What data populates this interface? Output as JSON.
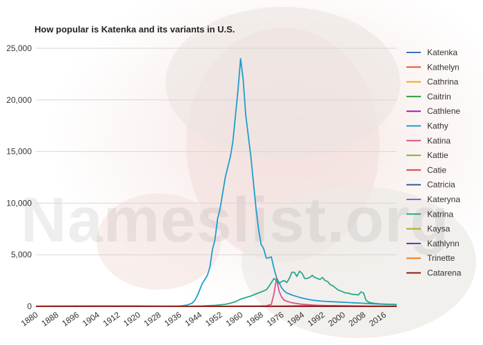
{
  "watermark": "Nameslist.org",
  "chart_data": {
    "type": "line",
    "title": "How popular is Katenka and its variants in U.S.",
    "xlim": [
      1880,
      2021
    ],
    "ylim": [
      0,
      25000
    ],
    "yticks": [
      0,
      5000,
      10000,
      15000,
      20000,
      25000
    ],
    "ytick_labels": [
      "0",
      "5,000",
      "10,000",
      "15,000",
      "20,000",
      "25,000"
    ],
    "xticks": [
      1880,
      1888,
      1896,
      1904,
      1912,
      1920,
      1928,
      1936,
      1944,
      1952,
      1960,
      1968,
      1976,
      1984,
      1992,
      2000,
      2008,
      2016
    ],
    "grid": "horizontal",
    "legend_position": "right",
    "series": [
      {
        "name": "Katenka",
        "color": "#3a6fc4",
        "points": [
          [
            1880,
            0
          ],
          [
            2021,
            0
          ]
        ]
      },
      {
        "name": "Kathelyn",
        "color": "#e8552a",
        "points": [
          [
            1880,
            0
          ],
          [
            2021,
            0
          ]
        ]
      },
      {
        "name": "Cathrina",
        "color": "#f2a71b",
        "points": [
          [
            1880,
            0
          ],
          [
            2021,
            0
          ]
        ]
      },
      {
        "name": "Caitrin",
        "color": "#2b9e3a",
        "points": [
          [
            1880,
            0
          ],
          [
            2021,
            0
          ]
        ]
      },
      {
        "name": "Cathlene",
        "color": "#9b1fa8",
        "points": [
          [
            1880,
            0
          ],
          [
            1950,
            0
          ],
          [
            1956,
            15
          ],
          [
            1962,
            25
          ],
          [
            1970,
            20
          ],
          [
            1980,
            8
          ],
          [
            1990,
            0
          ],
          [
            2021,
            0
          ]
        ]
      },
      {
        "name": "Kathy",
        "color": "#1e9ccc",
        "points": [
          [
            1880,
            5
          ],
          [
            1900,
            8
          ],
          [
            1920,
            10
          ],
          [
            1930,
            15
          ],
          [
            1935,
            30
          ],
          [
            1937,
            60
          ],
          [
            1939,
            120
          ],
          [
            1941,
            300
          ],
          [
            1942,
            550
          ],
          [
            1943,
            1000
          ],
          [
            1944,
            1600
          ],
          [
            1945,
            2200
          ],
          [
            1946,
            2600
          ],
          [
            1947,
            3000
          ],
          [
            1948,
            3800
          ],
          [
            1949,
            5500
          ],
          [
            1950,
            6500
          ],
          [
            1951,
            8500
          ],
          [
            1952,
            9500
          ],
          [
            1953,
            11000
          ],
          [
            1954,
            12500
          ],
          [
            1955,
            13500
          ],
          [
            1956,
            14500
          ],
          [
            1957,
            16000
          ],
          [
            1958,
            18500
          ],
          [
            1959,
            21000
          ],
          [
            1960,
            24000
          ],
          [
            1961,
            22000
          ],
          [
            1962,
            18500
          ],
          [
            1963,
            16500
          ],
          [
            1964,
            14500
          ],
          [
            1965,
            12000
          ],
          [
            1966,
            9500
          ],
          [
            1967,
            7500
          ],
          [
            1968,
            6000
          ],
          [
            1969,
            5600
          ],
          [
            1970,
            4700
          ],
          [
            1971,
            4700
          ],
          [
            1972,
            4800
          ],
          [
            1973,
            3700
          ],
          [
            1974,
            2800
          ],
          [
            1975,
            2300
          ],
          [
            1976,
            1800
          ],
          [
            1977,
            1500
          ],
          [
            1978,
            1300
          ],
          [
            1979,
            1200
          ],
          [
            1980,
            1100
          ],
          [
            1982,
            950
          ],
          [
            1984,
            800
          ],
          [
            1986,
            700
          ],
          [
            1988,
            600
          ],
          [
            1990,
            550
          ],
          [
            1992,
            500
          ],
          [
            1996,
            450
          ],
          [
            2000,
            400
          ],
          [
            2004,
            350
          ],
          [
            2008,
            300
          ],
          [
            2012,
            250
          ],
          [
            2016,
            200
          ],
          [
            2021,
            180
          ]
        ]
      },
      {
        "name": "Katina",
        "color": "#e0508a",
        "points": [
          [
            1880,
            0
          ],
          [
            1960,
            15
          ],
          [
            1965,
            30
          ],
          [
            1970,
            60
          ],
          [
            1972,
            200
          ],
          [
            1973,
            1200
          ],
          [
            1974,
            2700
          ],
          [
            1975,
            1500
          ],
          [
            1976,
            900
          ],
          [
            1977,
            600
          ],
          [
            1978,
            500
          ],
          [
            1980,
            350
          ],
          [
            1984,
            200
          ],
          [
            1990,
            100
          ],
          [
            2000,
            40
          ],
          [
            2010,
            15
          ],
          [
            2021,
            10
          ]
        ]
      },
      {
        "name": "Kattie",
        "color": "#7cb82f",
        "points": [
          [
            1880,
            30
          ],
          [
            1890,
            40
          ],
          [
            1900,
            45
          ],
          [
            1910,
            50
          ],
          [
            1920,
            45
          ],
          [
            1930,
            30
          ],
          [
            1940,
            15
          ],
          [
            1950,
            8
          ],
          [
            1960,
            3
          ],
          [
            1970,
            0
          ],
          [
            2021,
            0
          ]
        ]
      },
      {
        "name": "Catie",
        "color": "#d2443a",
        "points": [
          [
            1880,
            0
          ],
          [
            1960,
            0
          ],
          [
            1970,
            10
          ],
          [
            1980,
            40
          ],
          [
            1990,
            80
          ],
          [
            2000,
            60
          ],
          [
            2010,
            30
          ],
          [
            2021,
            20
          ]
        ]
      },
      {
        "name": "Catricia",
        "color": "#3a5a9c",
        "points": [
          [
            1880,
            0
          ],
          [
            2021,
            0
          ]
        ]
      },
      {
        "name": "Kateryna",
        "color": "#9a5cc2",
        "points": [
          [
            1880,
            0
          ],
          [
            2021,
            0
          ]
        ]
      },
      {
        "name": "Katrina",
        "color": "#27a78c",
        "points": [
          [
            1880,
            0
          ],
          [
            1940,
            10
          ],
          [
            1945,
            40
          ],
          [
            1948,
            80
          ],
          [
            1950,
            100
          ],
          [
            1952,
            150
          ],
          [
            1954,
            200
          ],
          [
            1956,
            300
          ],
          [
            1958,
            450
          ],
          [
            1960,
            700
          ],
          [
            1962,
            850
          ],
          [
            1964,
            1000
          ],
          [
            1966,
            1200
          ],
          [
            1968,
            1400
          ],
          [
            1970,
            1600
          ],
          [
            1971,
            1900
          ],
          [
            1972,
            2300
          ],
          [
            1973,
            2700
          ],
          [
            1974,
            2500
          ],
          [
            1975,
            2200
          ],
          [
            1976,
            2400
          ],
          [
            1977,
            2500
          ],
          [
            1978,
            2300
          ],
          [
            1979,
            2700
          ],
          [
            1980,
            3300
          ],
          [
            1981,
            3300
          ],
          [
            1982,
            2900
          ],
          [
            1983,
            3400
          ],
          [
            1984,
            3200
          ],
          [
            1985,
            2700
          ],
          [
            1986,
            2700
          ],
          [
            1987,
            2800
          ],
          [
            1988,
            3000
          ],
          [
            1989,
            2800
          ],
          [
            1990,
            2700
          ],
          [
            1991,
            2600
          ],
          [
            1992,
            2800
          ],
          [
            1993,
            2500
          ],
          [
            1994,
            2400
          ],
          [
            1995,
            2100
          ],
          [
            1996,
            2000
          ],
          [
            1997,
            1800
          ],
          [
            1998,
            1600
          ],
          [
            1999,
            1500
          ],
          [
            2000,
            1400
          ],
          [
            2001,
            1300
          ],
          [
            2002,
            1300
          ],
          [
            2003,
            1200
          ],
          [
            2004,
            1150
          ],
          [
            2005,
            1150
          ],
          [
            2006,
            1100
          ],
          [
            2007,
            1400
          ],
          [
            2008,
            1300
          ],
          [
            2009,
            600
          ],
          [
            2010,
            400
          ],
          [
            2012,
            300
          ],
          [
            2014,
            250
          ],
          [
            2016,
            220
          ],
          [
            2018,
            200
          ],
          [
            2021,
            180
          ]
        ]
      },
      {
        "name": "Kaysa",
        "color": "#b5a81e",
        "points": [
          [
            1880,
            0
          ],
          [
            2021,
            0
          ]
        ]
      },
      {
        "name": "Kathlynn",
        "color": "#6a2bbd",
        "points": [
          [
            1880,
            0
          ],
          [
            2021,
            0
          ]
        ]
      },
      {
        "name": "Trinette",
        "color": "#f07f1a",
        "points": [
          [
            1880,
            0
          ],
          [
            1955,
            0
          ],
          [
            1962,
            20
          ],
          [
            1968,
            30
          ],
          [
            1975,
            15
          ],
          [
            1985,
            5
          ],
          [
            1995,
            0
          ],
          [
            2021,
            0
          ]
        ]
      },
      {
        "name": "Catarena",
        "color": "#8b1a1a",
        "points": [
          [
            1880,
            0
          ],
          [
            2021,
            0
          ]
        ]
      }
    ]
  }
}
